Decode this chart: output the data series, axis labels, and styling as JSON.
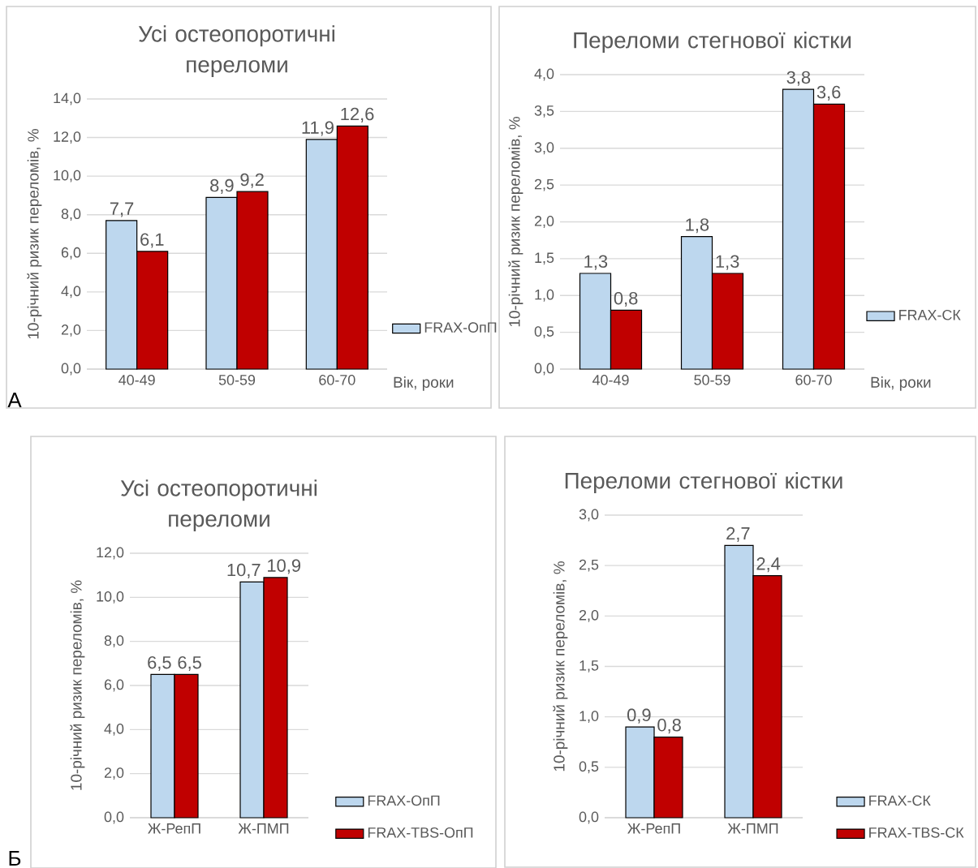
{
  "chart_data": [
    {
      "type": "bar",
      "title": "Усі остеопоротичні переломи",
      "ylabel": "10-річний ризик переломів, %",
      "xlabel": "Вік, роки",
      "categories": [
        "40-49",
        "50-59",
        "60-70"
      ],
      "series": [
        {
          "name": "FRAX-ОпП",
          "color": "#bdd7ee",
          "values": [
            7.7,
            8.9,
            11.9
          ],
          "value_labels": [
            "7,7",
            "8,9",
            "11,9"
          ]
        },
        {
          "color": "#c00000",
          "values": [
            6.1,
            9.2,
            12.6
          ],
          "value_labels": [
            "6,1",
            "9,2",
            "12,6"
          ]
        }
      ],
      "ylim": [
        0,
        14
      ],
      "yticks": [
        {
          "value": 0,
          "label": "0,0"
        },
        {
          "value": 2,
          "label": "2,0"
        },
        {
          "value": 4,
          "label": "4,0"
        },
        {
          "value": 6,
          "label": "6,0"
        },
        {
          "value": 8,
          "label": "8,0"
        },
        {
          "value": 10,
          "label": "10,0"
        },
        {
          "value": 12,
          "label": "12,0"
        },
        {
          "value": 14,
          "label": "14,0"
        }
      ],
      "grid": "y",
      "legend": "right",
      "annotations": [
        "А"
      ]
    },
    {
      "type": "bar",
      "title": "Переломи стегнової кістки",
      "ylabel": "10-річний ризик переломів, %",
      "xlabel": "Вік, роки",
      "categories": [
        "40-49",
        "50-59",
        "60-70"
      ],
      "series": [
        {
          "name": "FRAX-СК",
          "color": "#bdd7ee",
          "values": [
            1.3,
            1.8,
            3.8
          ],
          "value_labels": [
            "1,3",
            "1,8",
            "3,8"
          ]
        },
        {
          "color": "#c00000",
          "values": [
            0.8,
            1.3,
            3.6
          ],
          "value_labels": [
            "0,8",
            "1,3",
            "3,6"
          ]
        }
      ],
      "ylim": [
        0,
        4
      ],
      "yticks": [
        {
          "value": 0,
          "label": "0,0"
        },
        {
          "value": 0.5,
          "label": "0,5"
        },
        {
          "value": 1,
          "label": "1,0"
        },
        {
          "value": 1.5,
          "label": "1,5"
        },
        {
          "value": 2,
          "label": "2,0"
        },
        {
          "value": 2.5,
          "label": "2,5"
        },
        {
          "value": 3,
          "label": "3,0"
        },
        {
          "value": 3.5,
          "label": "3,5"
        },
        {
          "value": 4,
          "label": "4,0"
        }
      ],
      "grid": "y",
      "legend": "right"
    },
    {
      "type": "bar",
      "title": "Усі остеопоротичні переломи",
      "ylabel": "10-річний ризик переломів, %",
      "categories": [
        "Ж-РепП",
        "Ж-ПМП"
      ],
      "series": [
        {
          "name": "FRAX-ОпП",
          "color": "#bdd7ee",
          "values": [
            6.5,
            10.7
          ],
          "value_labels": [
            "6,5",
            "10,7"
          ]
        },
        {
          "name": "FRAX-TBS-ОпП",
          "color": "#c00000",
          "values": [
            6.5,
            10.9
          ],
          "value_labels": [
            "6,5",
            "10,9"
          ]
        }
      ],
      "ylim": [
        0,
        12
      ],
      "yticks": [
        {
          "value": 0,
          "label": "0,0"
        },
        {
          "value": 2,
          "label": "2,0"
        },
        {
          "value": 4,
          "label": "4,0"
        },
        {
          "value": 6,
          "label": "6,0"
        },
        {
          "value": 8,
          "label": "8,0"
        },
        {
          "value": 10,
          "label": "10,0"
        },
        {
          "value": 12,
          "label": "12,0"
        }
      ],
      "grid": "y",
      "legend": "bottom right",
      "annotations": [
        "Б"
      ]
    },
    {
      "type": "bar",
      "title": "Переломи стегнової кістки",
      "ylabel": "10-річний ризик переломів, %",
      "categories": [
        "Ж-РепП",
        "Ж-ПМП"
      ],
      "series": [
        {
          "name": "FRAX-СК",
          "color": "#bdd7ee",
          "values": [
            0.9,
            2.7
          ],
          "value_labels": [
            "0,9",
            "2,7"
          ]
        },
        {
          "name": "FRAX-TBS-СК",
          "color": "#c00000",
          "values": [
            0.8,
            2.4
          ],
          "value_labels": [
            "0,8",
            "2,4"
          ]
        }
      ],
      "ylim": [
        0,
        3
      ],
      "yticks": [
        {
          "value": 0,
          "label": "0,0"
        },
        {
          "value": 0.5,
          "label": "0,5"
        },
        {
          "value": 1,
          "label": "1,0"
        },
        {
          "value": 1.5,
          "label": "1,5"
        },
        {
          "value": 2,
          "label": "2,0"
        },
        {
          "value": 2.5,
          "label": "2,5"
        },
        {
          "value": 3,
          "label": "3,0"
        }
      ],
      "grid": "y",
      "legend": "bottom right"
    }
  ]
}
